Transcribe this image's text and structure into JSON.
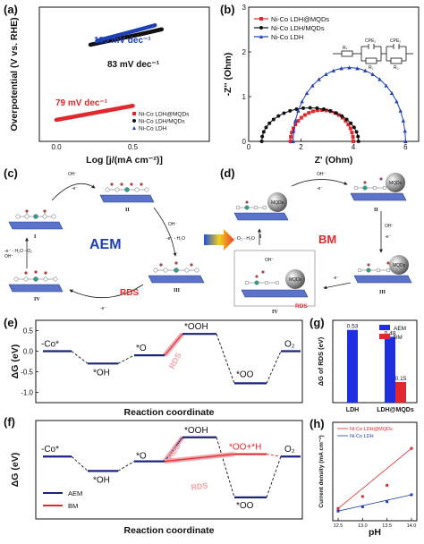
{
  "panels": {
    "a": "(a)",
    "b": "(b)",
    "c": "(c)",
    "d": "(d)",
    "e": "(e)",
    "f": "(f)",
    "g": "(g)",
    "h": "(h)"
  },
  "colors": {
    "red": "#e0282e",
    "blue": "#1f3fb4",
    "navy": "#1a237e",
    "black": "#111111",
    "pink": "#f2a3a9",
    "slab": "#5a72c8",
    "gradient_arrow": [
      "#1e4fd8",
      "#f2d020",
      "#e8402a"
    ]
  },
  "chart_data": [
    {
      "panel": "a",
      "type": "line",
      "xlabel": "Log [j/(mA cm⁻²)]",
      "ylabel": "Overpotential (V vs. RHE)",
      "xlim": [
        0,
        1
      ],
      "ylim": [
        0,
        1
      ],
      "xticks": [
        "0.0",
        "0.5"
      ],
      "yticks": [],
      "legend": "bottom-right",
      "series": [
        {
          "name": "Ni-Co LDH@MQDs",
          "color": "#e0282e",
          "marker": "square",
          "tafel": "79 mV dec⁻¹",
          "points": [
            [
              0.1,
              0.16
            ],
            [
              0.25,
              0.195
            ],
            [
              0.4,
              0.23
            ],
            [
              0.55,
              0.265
            ]
          ]
        },
        {
          "name": "Ni-Co LDH/MQDs",
          "color": "#111111",
          "marker": "circle",
          "tafel": "83 mV dec⁻¹",
          "points": [
            [
              0.3,
              0.72
            ],
            [
              0.45,
              0.76
            ],
            [
              0.6,
              0.8
            ],
            [
              0.72,
              0.835
            ]
          ]
        },
        {
          "name": "Ni-Co LDH",
          "color": "#1f3fb4",
          "marker": "triangle",
          "tafel": "105 mV dec⁻¹",
          "points": [
            [
              0.34,
              0.75
            ],
            [
              0.46,
              0.79
            ],
            [
              0.58,
              0.83
            ],
            [
              0.68,
              0.865
            ]
          ]
        }
      ]
    },
    {
      "panel": "b",
      "type": "scatter",
      "xlabel": "Z' (Ohm)",
      "ylabel": "-Z'' (Ohm)",
      "xlim": [
        0,
        6.5
      ],
      "ylim": [
        0,
        3
      ],
      "xticks": [
        0,
        2,
        4,
        6
      ],
      "yticks": [
        0,
        1,
        2,
        3
      ],
      "legend": "top-left",
      "circuit_labels": [
        "Rₛ",
        "CPE₁",
        "CPE₂",
        "R₁",
        "R₂"
      ],
      "series": [
        {
          "name": "Ni-Co LDH@MQDs",
          "color": "#e0282e",
          "marker": "square",
          "arc": [
            1.6,
            4.0,
            0.7
          ]
        },
        {
          "name": "Ni-Co LDH/MQDs",
          "color": "#111111",
          "marker": "circle",
          "arc": [
            0.5,
            4.2,
            0.75
          ]
        },
        {
          "name": "Ni-Co LDH",
          "color": "#1f3fb4",
          "marker": "triangle",
          "arc": [
            1.7,
            6.0,
            1.65
          ]
        }
      ]
    },
    {
      "panel": "e",
      "type": "line",
      "xlabel": "Reaction coordinate",
      "ylabel": "ΔG (eV)",
      "ylim": [
        -1.25,
        0.75
      ],
      "yticks": [
        "0.5",
        "0.0",
        "-0.5",
        "-1.0"
      ],
      "states": [
        "-Co*",
        "*OH",
        "*O",
        "*OOH",
        "*OO",
        "O₂"
      ],
      "levels": [
        0.0,
        -0.3,
        -0.1,
        0.42,
        -0.78,
        0.0
      ],
      "rds_label": "RDS"
    },
    {
      "panel": "f",
      "type": "line",
      "xlabel": "Reaction coordinate",
      "ylabel": "ΔG (eV)",
      "states_aem": [
        "-Co*",
        "*OH",
        "*O",
        "*OOH",
        "*OO",
        "O₂"
      ],
      "states_bm": [
        "*OO+*H"
      ],
      "levels_aem": [
        0.0,
        -0.3,
        -0.1,
        0.4,
        -0.85,
        0.0
      ],
      "levels_bm": [
        0.0,
        -0.3,
        -0.1,
        0.05,
        -0.5,
        0.0
      ],
      "series": [
        {
          "name": "AEM",
          "color": "#1a237e"
        },
        {
          "name": "BM",
          "color": "#e0282e"
        }
      ],
      "rds_labels": [
        "RDS",
        "RDS"
      ]
    },
    {
      "panel": "g",
      "type": "bar",
      "ylabel": "ΔG of RDS (eV)",
      "categories": [
        "LDH",
        "LDH@MQDs"
      ],
      "ylim": [
        0,
        0.6
      ],
      "legend": "top-right",
      "series": [
        {
          "name": "AEM",
          "color": "#1f2fe0",
          "values": [
            0.53,
            0.48
          ]
        },
        {
          "name": "BM",
          "color": "#e0282e",
          "values": [
            null,
            0.15
          ]
        }
      ],
      "value_labels": [
        "0.53",
        "0.48",
        "0.15"
      ]
    },
    {
      "panel": "h",
      "type": "scatter",
      "xlabel": "pH",
      "ylabel": "Current density (mA cm⁻²)",
      "xlim": [
        12.5,
        14.0
      ],
      "xticks": [
        "12.5",
        "13.0",
        "13.5",
        "14.0"
      ],
      "legend": "top-left",
      "series": [
        {
          "name": "Ni-Co LDH@MQDs",
          "color": "#e0282e",
          "points": [
            [
              12.5,
              0.08
            ],
            [
              13.0,
              0.22
            ],
            [
              13.5,
              0.35
            ],
            [
              14.0,
              0.78
            ]
          ]
        },
        {
          "name": "Ni-Co LDH",
          "color": "#1f3fb4",
          "points": [
            [
              12.5,
              0.05
            ],
            [
              13.0,
              0.1
            ],
            [
              13.5,
              0.16
            ],
            [
              14.0,
              0.24
            ]
          ]
        }
      ]
    }
  ],
  "schemes": {
    "c": {
      "title": "AEM",
      "rds": "RDS",
      "state_labels": [
        "I",
        "II",
        "III",
        "IV"
      ],
      "step_labels": [
        "OH⁻",
        "-e⁻",
        "OH⁻",
        "-e⁻ - H₂O",
        "OH⁻",
        "-e⁻ - H₂O - O₂",
        "-e⁻"
      ]
    },
    "d": {
      "title": "BM",
      "rds": "RDS",
      "state_labels": [
        "I",
        "II",
        "III",
        "IV"
      ],
      "mqd_label": "MQDs",
      "step_labels": [
        "OH⁻",
        "-e⁻",
        "OH⁻",
        "-e⁻",
        "- O₂ - H₂O",
        "-e⁻",
        "OH⁻"
      ]
    }
  }
}
